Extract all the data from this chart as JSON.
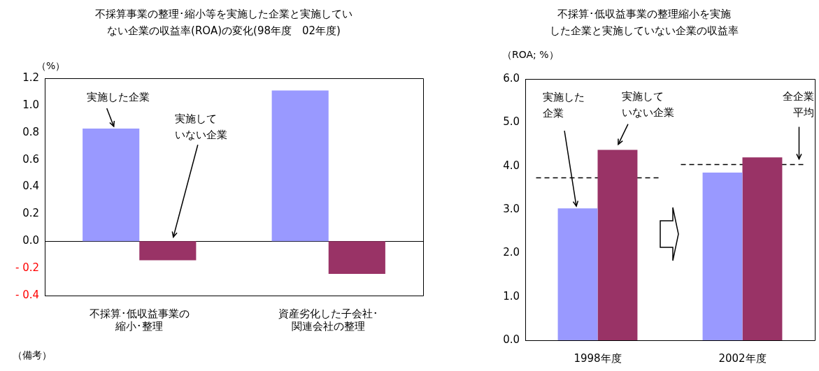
{
  "chart_data": [
    {
      "type": "bar",
      "title": "不採算事業の整理･縮小等を実施した企業と実施していない企業の収益率(ROA)の変化(98年度　02年度)",
      "ylabel": "（%）",
      "categories": [
        "不採算･低収益事業の縮小･整理",
        "資産劣化した子会社･関連会社の整理"
      ],
      "series": [
        {
          "name": "実施した企業",
          "color": "#9999ff",
          "values": [
            0.83,
            1.11
          ]
        },
        {
          "name": "実施していない企業",
          "color": "#993366",
          "values": [
            -0.14,
            -0.24
          ]
        }
      ],
      "ylim": [
        -0.4,
        1.2
      ],
      "yticks": [
        {
          "value": -0.4,
          "label": "- 0.4"
        },
        {
          "value": -0.2,
          "label": "- 0.2"
        },
        {
          "value": 0,
          "label": "0.0"
        },
        {
          "value": 0.2,
          "label": "0.2"
        },
        {
          "value": 0.4,
          "label": "0.4"
        },
        {
          "value": 0.6,
          "label": "0.6"
        },
        {
          "value": 0.8,
          "label": "0.8"
        },
        {
          "value": 1,
          "label": "1.0"
        },
        {
          "value": 1.2,
          "label": "1.2"
        }
      ],
      "ref_lines": [
        {
          "axis": "y",
          "value": 0,
          "color": "#000000"
        }
      ],
      "legend": false,
      "annotations": [
        "（備考）"
      ]
    },
    {
      "type": "bar",
      "title": "不採算･低収益事業の整理縮小を実施した企業と実施していない企業の収益率",
      "ylabel": "（ROA; %）",
      "categories": [
        "1998年度",
        "2002年度"
      ],
      "series": [
        {
          "name": "実施した企業",
          "color": "#9999ff",
          "values": [
            3.03,
            3.85
          ]
        },
        {
          "name": "実施していない企業",
          "color": "#993366",
          "values": [
            4.37,
            4.2
          ]
        }
      ],
      "ref_lines": [
        {
          "axis": "y",
          "value": 3.73,
          "color": "#000000",
          "line_style": "dashed"
        },
        {
          "axis": "y",
          "value": 4.05,
          "label": "全企業平均",
          "color": "#000000",
          "line_style": "dashed"
        }
      ],
      "ylim": [
        0,
        6
      ],
      "yticks": [
        {
          "value": 0,
          "label": "0.0"
        },
        {
          "value": 1,
          "label": "1.0"
        },
        {
          "value": 2,
          "label": "2.0"
        },
        {
          "value": 3,
          "label": "3.0"
        },
        {
          "value": 4,
          "label": "4.0"
        },
        {
          "value": 5,
          "label": "5.0"
        },
        {
          "value": 6,
          "label": "6.0"
        }
      ],
      "legend": false
    }
  ]
}
